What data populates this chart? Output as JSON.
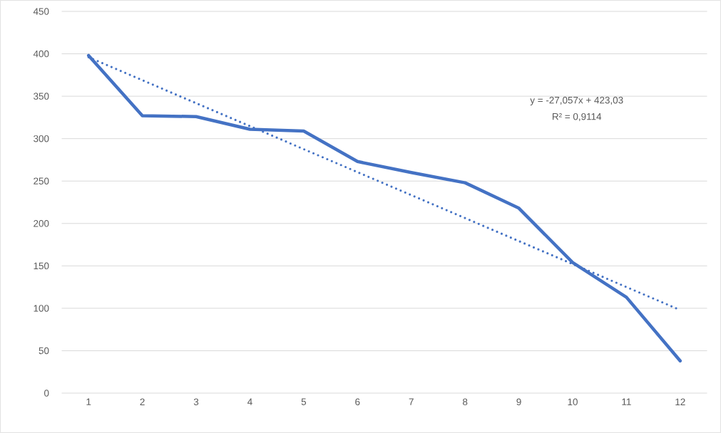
{
  "chart_data": {
    "type": "line",
    "x": [
      1,
      2,
      3,
      4,
      5,
      6,
      7,
      8,
      9,
      10,
      11,
      12
    ],
    "series": [
      {
        "color": "#4472c4",
        "line_style": "solid",
        "values": [
          398,
          327,
          326,
          311,
          309,
          273,
          260,
          248,
          218,
          154,
          113,
          38
        ]
      },
      {
        "color": "#4472c4",
        "line_style": "dotted",
        "x": [
          1,
          12
        ],
        "values": [
          396,
          98
        ]
      }
    ],
    "xlim": [
      0.5,
      12.5
    ],
    "xticks": [
      1,
      2,
      3,
      4,
      5,
      6,
      7,
      8,
      9,
      10,
      11,
      12
    ],
    "ylim": [
      0,
      450
    ],
    "yticks": [
      0,
      50,
      100,
      150,
      200,
      250,
      300,
      350,
      400,
      450
    ],
    "grid": "y",
    "marker": "none",
    "annotations": [
      "y = -27,057x + 423,03",
      "R² = 0,9114"
    ]
  }
}
